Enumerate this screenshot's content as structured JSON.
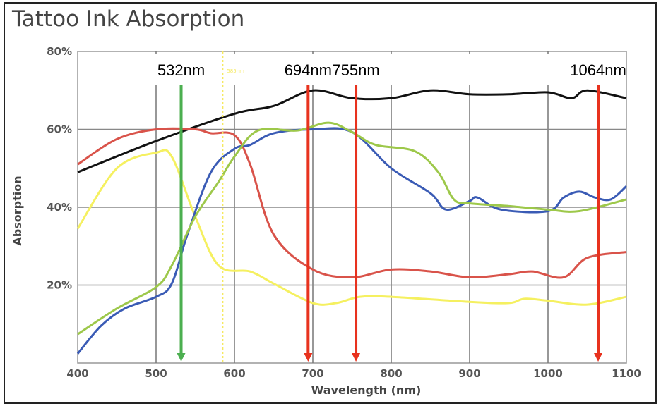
{
  "chart_data": {
    "type": "line",
    "title": "Tattoo Ink Absorption",
    "xlabel": "Wavelength (nm)",
    "ylabel": "Absorption",
    "xlim": [
      400,
      1100
    ],
    "ylim": [
      0,
      80
    ],
    "xticks": [
      "400",
      "500",
      "600",
      "700",
      "800",
      "900",
      "1000",
      "1100"
    ],
    "yticks": [
      "20%",
      "40%",
      "60%",
      "80%"
    ],
    "grid": true,
    "series": [
      {
        "name": "black",
        "color": "#111111",
        "x": [
          400,
          500,
          600,
          650,
          700,
          750,
          800,
          850,
          900,
          950,
          1000,
          1030,
          1050,
          1100
        ],
        "y": [
          49,
          57,
          64,
          66,
          70,
          68,
          68,
          70,
          69,
          69,
          69.5,
          68,
          70,
          68
        ]
      },
      {
        "name": "red",
        "color": "#d9534a",
        "x": [
          400,
          450,
          500,
          550,
          570,
          600,
          620,
          650,
          700,
          750,
          800,
          850,
          900,
          950,
          980,
          1020,
          1050,
          1100
        ],
        "y": [
          51,
          57.5,
          60,
          60,
          59,
          58.5,
          51,
          33,
          24,
          22,
          24,
          23.5,
          22,
          22.8,
          23.5,
          22,
          27,
          28.5
        ]
      },
      {
        "name": "yellow",
        "color": "#f5f060",
        "x": [
          400,
          450,
          500,
          520,
          550,
          580,
          620,
          650,
          700,
          730,
          760,
          800,
          900,
          950,
          970,
          1000,
          1050,
          1100
        ],
        "y": [
          34.5,
          50,
          54,
          53,
          37.6,
          25,
          23.5,
          20.4,
          15.4,
          15.4,
          17,
          17,
          15.7,
          15.4,
          16.5,
          16,
          15,
          17
        ]
      },
      {
        "name": "blue",
        "color": "#3a5bb5",
        "x": [
          400,
          430,
          460,
          500,
          520,
          540,
          570,
          600,
          620,
          650,
          700,
          750,
          800,
          850,
          870,
          900,
          910,
          940,
          1000,
          1020,
          1040,
          1060,
          1080,
          1100
        ],
        "y": [
          2.4,
          9.6,
          14,
          17,
          20.4,
          33,
          49,
          55,
          56,
          59,
          60,
          59.3,
          50,
          43.6,
          39.4,
          41.6,
          42.5,
          39.4,
          39,
          42.5,
          44,
          42.5,
          42,
          45.4
        ]
      },
      {
        "name": "green",
        "color": "#9dc84a",
        "x": [
          400,
          450,
          500,
          520,
          550,
          580,
          600,
          630,
          680,
          720,
          750,
          780,
          830,
          860,
          880,
          900,
          950,
          1000,
          1040,
          1100
        ],
        "y": [
          7.4,
          14,
          19.5,
          25,
          37.6,
          46.6,
          53,
          59.7,
          59.7,
          61.7,
          59.3,
          56,
          54.4,
          49,
          42,
          41,
          40.3,
          39.4,
          39,
          42
        ]
      }
    ],
    "annotations": [
      {
        "label": "532nm",
        "x": 532,
        "color": "#4caf50"
      },
      {
        "label": "694nm",
        "x": 694,
        "color": "#e8321e"
      },
      {
        "label": "755nm",
        "x": 755,
        "color": "#e8321e"
      },
      {
        "label": "1064nm",
        "x": 1064,
        "color": "#e8321e"
      }
    ],
    "minor_annotation": {
      "label": "585nm",
      "x": 585,
      "color": "#f5e960"
    }
  }
}
